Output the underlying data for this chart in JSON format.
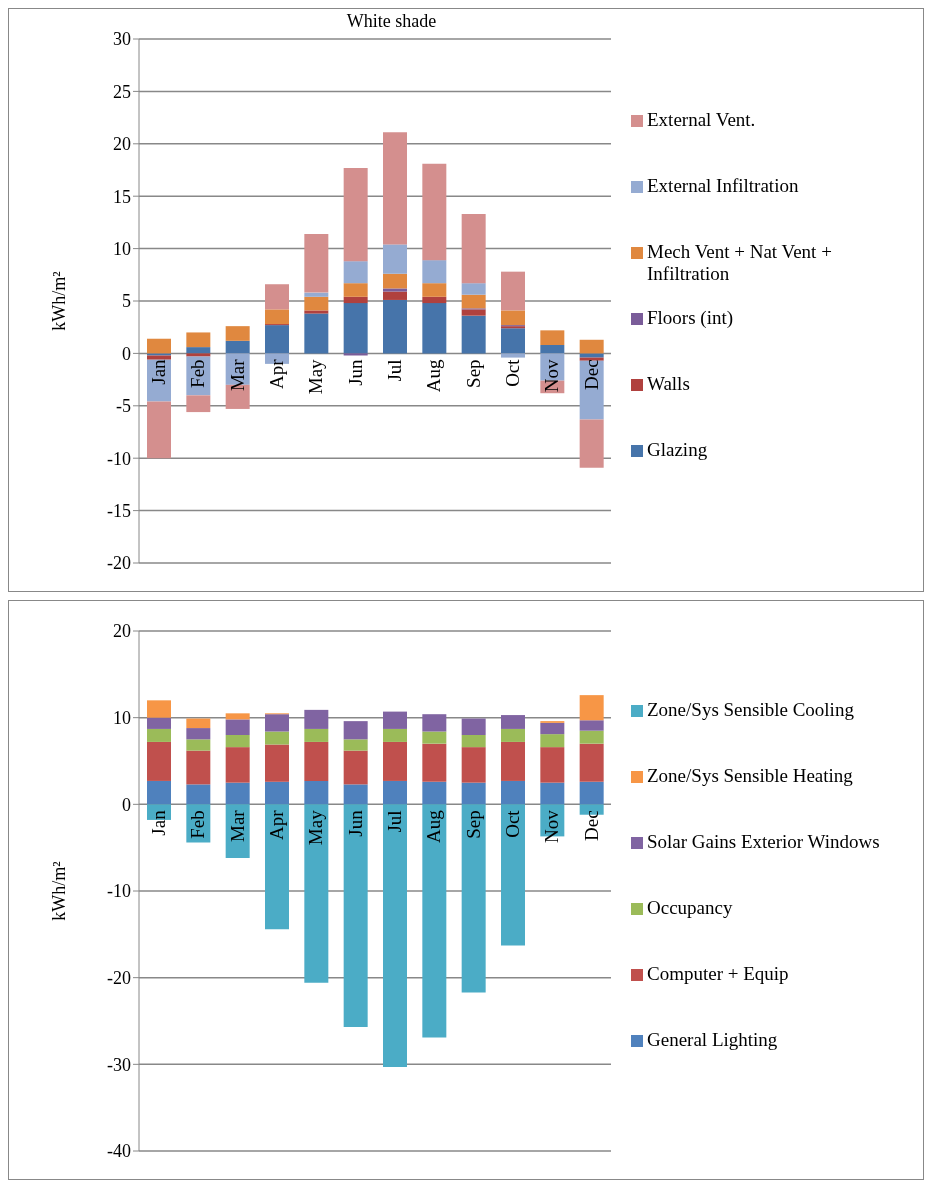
{
  "chart_data": [
    {
      "type": "bar",
      "title": "White shade",
      "ylabel": "kWh/m²",
      "stacked": true,
      "categories": [
        "Jan",
        "Feb",
        "Mar",
        "Apr",
        "May",
        "Jun",
        "Jul",
        "Aug",
        "Sep",
        "Oct",
        "Nov",
        "Dec"
      ],
      "ylim": [
        -20,
        30
      ],
      "yticks": [
        -20,
        -15,
        -10,
        -5,
        0,
        5,
        10,
        15,
        20,
        25,
        30
      ],
      "grid": "y",
      "legend": "right",
      "series": [
        {
          "name": "Glazing",
          "color": "#4674aa",
          "values": [
            -0.2,
            0.6,
            1.2,
            2.7,
            3.8,
            4.8,
            5.1,
            4.8,
            3.6,
            2.4,
            0.8,
            -0.4
          ]
        },
        {
          "name": "Walls",
          "color": "#b0413e",
          "values": [
            -0.4,
            -0.3,
            null,
            0.1,
            0.3,
            0.6,
            0.8,
            0.6,
            0.6,
            0.2,
            null,
            -0.3
          ]
        },
        {
          "name": "Floors (int)",
          "color": "#7a5c99",
          "values": [
            null,
            null,
            null,
            null,
            null,
            -0.2,
            0.3,
            null,
            0.1,
            0.1,
            null,
            null
          ]
        },
        {
          "name": "Mech Vent + Nat Vent + Infiltration",
          "color": "#e0883f",
          "values": [
            1.4,
            1.4,
            1.4,
            1.4,
            1.3,
            1.3,
            1.4,
            1.3,
            1.3,
            1.4,
            1.4,
            1.3
          ]
        },
        {
          "name": "External Infiltration",
          "color": "#95abd2",
          "values": [
            -4.0,
            -3.7,
            -3.0,
            -1.0,
            0.4,
            2.1,
            2.8,
            2.2,
            1.1,
            -0.4,
            -2.6,
            -5.6
          ]
        },
        {
          "name": "External Vent.",
          "color": "#d48f8e",
          "values": [
            -5.4,
            -1.6,
            -2.3,
            2.4,
            5.6,
            8.9,
            10.7,
            9.2,
            6.6,
            3.7,
            -1.2,
            -4.6
          ]
        }
      ]
    },
    {
      "type": "bar",
      "ylabel": "kWh/m²",
      "stacked": true,
      "categories": [
        "Jan",
        "Feb",
        "Mar",
        "Apr",
        "May",
        "Jun",
        "Jul",
        "Aug",
        "Sep",
        "Oct",
        "Nov",
        "Dec"
      ],
      "ylim": [
        -40,
        20
      ],
      "yticks": [
        -40,
        -30,
        -20,
        -10,
        0,
        10,
        20
      ],
      "grid": "y",
      "legend": "right",
      "series": [
        {
          "name": "General Lighting",
          "color": "#4f81bd",
          "values": [
            2.7,
            2.3,
            2.5,
            2.6,
            2.7,
            2.3,
            2.7,
            2.6,
            2.5,
            2.7,
            2.5,
            2.6
          ]
        },
        {
          "name": "Computer + Equip",
          "color": "#c0504d",
          "values": [
            4.5,
            3.9,
            4.1,
            4.3,
            4.5,
            3.9,
            4.5,
            4.4,
            4.1,
            4.5,
            4.1,
            4.4
          ]
        },
        {
          "name": "Occupancy",
          "color": "#9bbb59",
          "values": [
            1.5,
            1.3,
            1.4,
            1.5,
            1.5,
            1.3,
            1.5,
            1.4,
            1.4,
            1.5,
            1.5,
            1.5
          ]
        },
        {
          "name": "Solar Gains Exterior Windows",
          "color": "#8064a2",
          "values": [
            1.3,
            1.3,
            1.8,
            2.0,
            2.2,
            2.1,
            2.0,
            2.0,
            1.9,
            1.6,
            1.3,
            1.2
          ]
        },
        {
          "name": "Zone/Sys Sensible Heating",
          "color": "#f79646",
          "values": [
            2.0,
            1.1,
            0.7,
            0.1,
            null,
            null,
            null,
            null,
            null,
            null,
            0.2,
            2.9
          ]
        },
        {
          "name": "Zone/Sys Sensible Cooling",
          "color": "#4bacc6",
          "values": [
            -1.8,
            -4.4,
            -6.2,
            -14.4,
            -20.6,
            -25.7,
            -30.3,
            -26.9,
            -21.7,
            -16.3,
            -3.7,
            -1.2
          ]
        }
      ]
    }
  ]
}
